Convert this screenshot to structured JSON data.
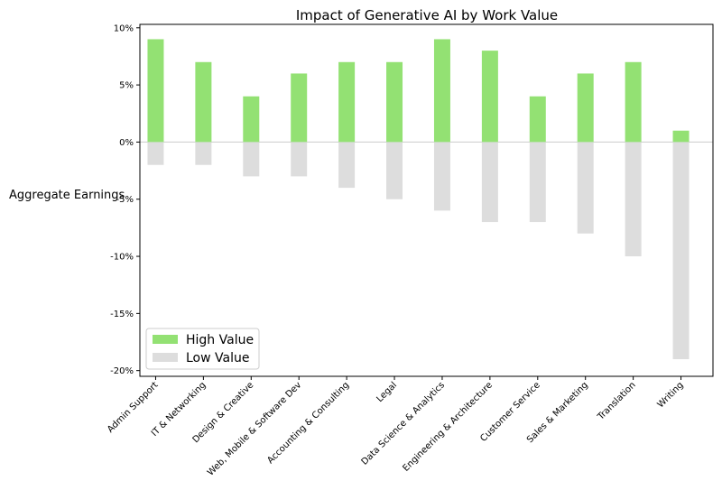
{
  "chart_data": {
    "type": "bar",
    "title": "Impact of Generative AI by Work Value",
    "xlabel": "",
    "ylabel": "Aggregate Earnings",
    "ylim": [
      -20.5,
      10.3
    ],
    "yticks": [
      10,
      5,
      0,
      -5,
      -10,
      -15,
      -20
    ],
    "ytick_labels": [
      "10%",
      "5%",
      "0%",
      "-5%",
      "-10%",
      "-15%",
      "-20%"
    ],
    "categories": [
      "Admin Support",
      "IT & Networking",
      "Design & Creative",
      "Web, Mobile & Software Dev",
      "Accounting & Consulting",
      "Legal",
      "Data Science & Analytics",
      "Engineering & Architecture",
      "Customer Service",
      "Sales & Marketing",
      "Translation",
      "Writing"
    ],
    "series": [
      {
        "name": "High Value",
        "color": "#93e173",
        "values": [
          9,
          7,
          4,
          6,
          7,
          7,
          9,
          8,
          4,
          6,
          7,
          1
        ]
      },
      {
        "name": "Low Value",
        "color": "#dddddd",
        "values": [
          -2,
          -2,
          -3,
          -3,
          -4,
          -5,
          -6,
          -7,
          -7,
          -8,
          -10,
          -19
        ]
      }
    ],
    "zero_line_color": "#cccccc",
    "grid": false,
    "legend_position": "lower-left"
  }
}
